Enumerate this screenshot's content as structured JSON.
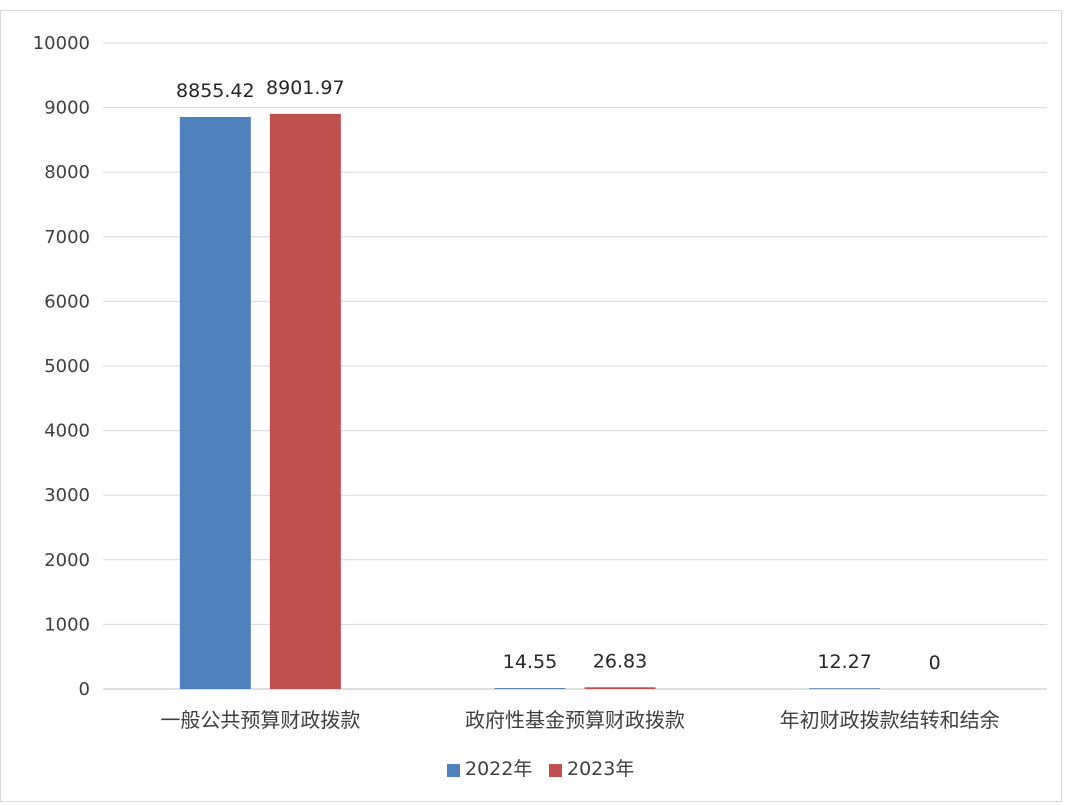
{
  "chart_data": {
    "type": "bar",
    "categories": [
      "一般公共预算财政拨款",
      "政府性基金预算财政拨款",
      "年初财政拨款结转和结余"
    ],
    "series": [
      {
        "name": "2022年",
        "values": [
          8855.42,
          14.55,
          12.27
        ],
        "labels": [
          "8855.42",
          "14.55",
          "12.27"
        ],
        "color": "#4f81bd"
      },
      {
        "name": "2023年",
        "values": [
          8901.97,
          26.83,
          0
        ],
        "labels": [
          "8901.97",
          "26.83",
          "0"
        ],
        "color": "#c0504d"
      }
    ],
    "yticks": [
      "0",
      "1000",
      "2000",
      "3000",
      "4000",
      "5000",
      "6000",
      "7000",
      "8000",
      "9000",
      "10000"
    ],
    "ylim": [
      0,
      10000
    ],
    "grid": true,
    "legend_position": "bottom",
    "title": "",
    "xlabel": "",
    "ylabel": ""
  }
}
